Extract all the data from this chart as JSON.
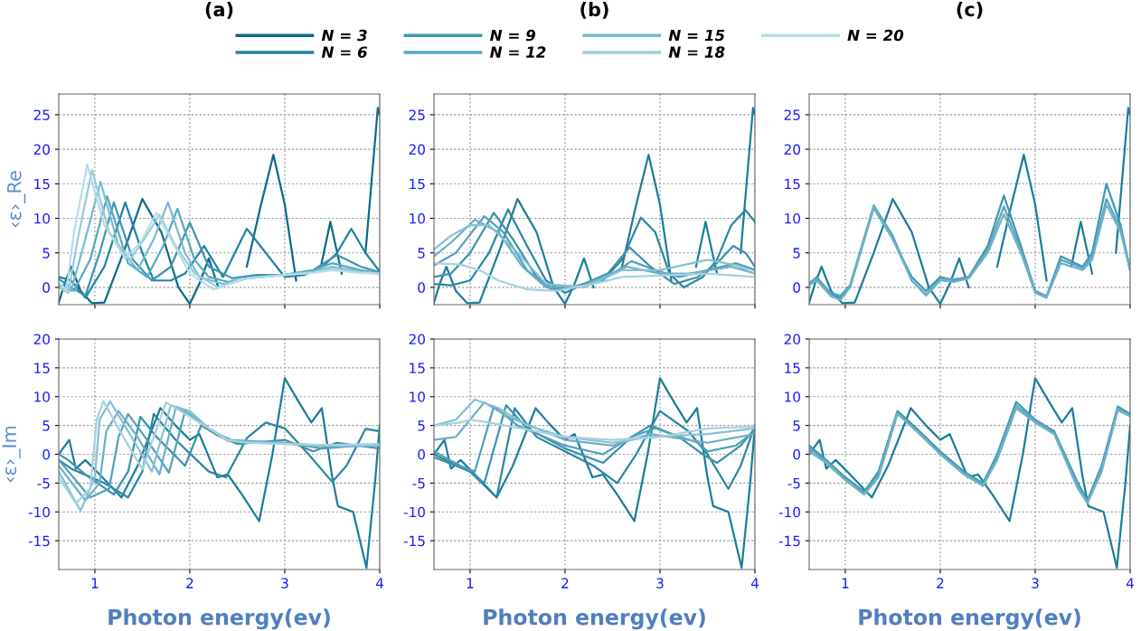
{
  "chart_data": [
    {
      "type": "line",
      "title": "(a)",
      "ylabel": "‹ε›_Re",
      "xlim": [
        0.62,
        4.0
      ],
      "ylim": [
        -2.5,
        28
      ],
      "xticks": [
        1,
        2,
        3,
        4
      ],
      "yticks": [
        0,
        5,
        10,
        15,
        20,
        25
      ],
      "tick_labels": "y",
      "grid": true,
      "legend": "top",
      "series": [
        {
          "name": "N = 3",
          "color": "#0b6a88",
          "x": [
            0.62,
            0.68,
            0.75,
            0.85,
            0.97,
            1.1,
            1.3,
            1.5,
            1.7,
            1.88,
            2.0,
            2.1,
            2.2,
            2.3,
            2.42,
            2.6,
            2.75,
            2.88,
            3.0,
            3.12,
            3.25,
            3.38,
            3.48,
            3.6,
            3.72,
            3.85,
            3.98,
            4.0
          ],
          "values": [
            -2.2,
            0.5,
            3.0,
            -0.5,
            -2.3,
            -2.2,
            5,
            12.8,
            8,
            0,
            -2.4,
            0.5,
            4.2,
            0,
            null,
            3,
            12,
            19.2,
            12,
            1,
            null,
            3,
            9.5,
            2,
            null,
            5,
            26,
            25
          ]
        },
        {
          "name": "N = 6",
          "color": "#1f84a3",
          "x": [
            0.62,
            0.75,
            0.9,
            1.1,
            1.32,
            1.5,
            1.62,
            1.8,
            1.95,
            2.15,
            2.35,
            2.6,
            2.8,
            3.0,
            3.2,
            3.4,
            3.55,
            3.7,
            3.85,
            4.0
          ],
          "values": [
            1.5,
            1,
            -1.5,
            3,
            12.3,
            5,
            1,
            1,
            2,
            6,
            1.5,
            8.5,
            5,
            1.5,
            1.8,
            3,
            5,
            8.5,
            5,
            2.3
          ]
        },
        {
          "name": "N = 9",
          "color": "#3a97b4",
          "x": [
            0.62,
            0.75,
            0.9,
            1.05,
            1.2,
            1.4,
            1.6,
            1.8,
            2.0,
            2.2,
            2.45,
            2.7,
            3.0,
            3.3,
            3.55,
            3.8,
            4.0
          ],
          "values": [
            1.2,
            0,
            -1.2,
            5,
            12.3,
            4,
            1,
            3,
            9.4,
            3,
            1.3,
            1.8,
            1.8,
            2.5,
            4.7,
            3,
            2.2
          ]
        },
        {
          "name": "N = 12",
          "color": "#58a9c2",
          "x": [
            0.62,
            0.78,
            0.95,
            1.13,
            1.35,
            1.55,
            1.72,
            1.87,
            2.05,
            2.2,
            2.4,
            2.7,
            3.0,
            3.3,
            3.5,
            3.8,
            4.0
          ],
          "values": [
            0.5,
            -0.5,
            4,
            13.2,
            3.5,
            1.5,
            6,
            11.4,
            4,
            1.5,
            0.8,
            1.5,
            1.8,
            2.5,
            3.5,
            2.5,
            2.1
          ]
        },
        {
          "name": "N = 15",
          "color": "#78bad0",
          "x": [
            0.62,
            0.75,
            0.88,
            1.06,
            1.25,
            1.45,
            1.62,
            1.77,
            1.95,
            2.1,
            2.35,
            2.6,
            3.0,
            3.3,
            3.5,
            3.8,
            4.0
          ],
          "values": [
            0.3,
            -0.5,
            6,
            15.3,
            6,
            2.5,
            7,
            12.3,
            5,
            1.5,
            0.5,
            1.3,
            1.8,
            2.3,
            3,
            2.3,
            2
          ]
        },
        {
          "name": "N = 18",
          "color": "#98cbdc",
          "x": [
            0.62,
            0.72,
            0.82,
            0.97,
            1.15,
            1.37,
            1.52,
            1.68,
            1.85,
            2.05,
            2.3,
            2.6,
            3.0,
            3.3,
            3.5,
            3.8,
            4.0
          ],
          "values": [
            0,
            -0.8,
            7,
            17,
            8,
            4,
            7,
            10.5,
            6,
            2,
            0,
            1.3,
            1.8,
            2.2,
            2.8,
            2.2,
            2
          ]
        },
        {
          "name": "N = 20",
          "color": "#b8dce8",
          "x": [
            0.62,
            0.7,
            0.78,
            0.92,
            1.1,
            1.32,
            1.48,
            1.65,
            1.8,
            2.0,
            2.25,
            2.55,
            3.0,
            3.3,
            3.5,
            3.8,
            4.0
          ],
          "values": [
            0.8,
            -0.5,
            8,
            17.8,
            9,
            4.2,
            6.5,
            10.8,
            7,
            2,
            -0.3,
            1.2,
            1.8,
            2.1,
            2.5,
            2.1,
            2
          ]
        }
      ]
    },
    {
      "type": "line",
      "title": "(b)",
      "xlim": [
        0.62,
        4.0
      ],
      "ylim": [
        -2.5,
        28
      ],
      "xticks": [
        1,
        2,
        3,
        4
      ],
      "yticks": [
        0,
        5,
        10,
        15,
        20,
        25
      ],
      "tick_labels": "y",
      "grid": true,
      "series": [
        {
          "color": "#1b7d99",
          "x": [
            0.62,
            0.68,
            0.75,
            0.85,
            0.97,
            1.1,
            1.3,
            1.5,
            1.7,
            1.88,
            2.0,
            2.1,
            2.2,
            2.3,
            2.42,
            2.6,
            2.75,
            2.88,
            3.0,
            3.12,
            3.25,
            3.38,
            3.48,
            3.6,
            3.72,
            3.85,
            3.98,
            4.0
          ],
          "values": [
            -2.2,
            0.5,
            3.0,
            -0.5,
            -2.3,
            -2.2,
            5,
            12.8,
            8,
            0,
            -2.4,
            0.5,
            4.2,
            0,
            null,
            3,
            12,
            19.2,
            12,
            1,
            null,
            3,
            9.5,
            2,
            null,
            5,
            26,
            25
          ]
        },
        {
          "color": "#2a87a3",
          "x": [
            0.62,
            0.8,
            1.0,
            1.2,
            1.4,
            1.6,
            1.8,
            2.0,
            2.2,
            2.4,
            2.6,
            2.8,
            2.95,
            3.1,
            3.25,
            3.45,
            3.6,
            3.75,
            3.9,
            4.0
          ],
          "values": [
            0.5,
            0.3,
            1,
            5,
            11.3,
            6,
            1,
            -0.8,
            0.5,
            1,
            4,
            10.1,
            8,
            2,
            0,
            1.5,
            4,
            9,
            11.2,
            9.5
          ]
        },
        {
          "color": "#3b92ad",
          "x": [
            0.62,
            0.8,
            1.0,
            1.25,
            1.45,
            1.7,
            1.9,
            2.2,
            2.45,
            2.68,
            2.9,
            3.15,
            3.4,
            3.6,
            3.77,
            3.9,
            4.0
          ],
          "values": [
            1.5,
            2,
            5,
            10.8,
            7,
            1.5,
            -0.5,
            0.5,
            2,
            5.8,
            3,
            0.5,
            1.5,
            3.5,
            6,
            5,
            3
          ]
        },
        {
          "color": "#52a0b9",
          "x": [
            0.62,
            0.85,
            1.15,
            1.35,
            1.6,
            1.85,
            2.2,
            2.45,
            2.7,
            2.95,
            3.2,
            3.5,
            3.8,
            4.0
          ],
          "values": [
            3.2,
            5,
            10.3,
            8,
            2.5,
            -0.3,
            0.3,
            1.5,
            3.8,
            2.5,
            1.5,
            2.5,
            3.5,
            2.5
          ]
        },
        {
          "color": "#6aafc5",
          "x": [
            0.62,
            0.8,
            1.05,
            1.3,
            1.55,
            1.8,
            2.2,
            2.4,
            2.65,
            3.0,
            3.3,
            3.75,
            4.0
          ],
          "values": [
            4.5,
            6.5,
            9.8,
            8,
            3,
            0,
            0.3,
            1.5,
            3,
            2,
            2,
            3,
            2
          ]
        },
        {
          "color": "#86c0d3",
          "x": [
            0.62,
            0.8,
            1.0,
            1.2,
            1.5,
            1.8,
            2.2,
            2.6,
            3.0,
            3.5,
            3.8,
            4.0
          ],
          "values": [
            5.5,
            7.5,
            9,
            9,
            5,
            0.5,
            0,
            2.5,
            2.5,
            4,
            3.2,
            2
          ]
        },
        {
          "color": "#a6d2e0",
          "x": [
            0.62,
            0.9,
            1.1,
            1.3,
            1.6,
            1.9,
            2.3,
            2.6,
            3.0,
            3.5,
            4.0
          ],
          "values": [
            3.5,
            3.3,
            2.5,
            1,
            -0.3,
            -0.5,
            0.5,
            1.5,
            1.7,
            2,
            1.5
          ]
        }
      ]
    },
    {
      "type": "line",
      "title": "(c)",
      "xlim": [
        0.62,
        4.0
      ],
      "ylim": [
        -2.5,
        28
      ],
      "xticks": [
        1,
        2,
        3,
        4
      ],
      "yticks": [
        0,
        5,
        10,
        15,
        20,
        25
      ],
      "tick_labels": "y",
      "grid": true,
      "series": [
        {
          "color": "#1b7d99",
          "x": [
            0.62,
            0.68,
            0.75,
            0.85,
            0.97,
            1.1,
            1.3,
            1.5,
            1.7,
            1.88,
            2.0,
            2.1,
            2.2,
            2.3,
            2.42,
            2.6,
            2.75,
            2.88,
            3.0,
            3.12,
            3.25,
            3.38,
            3.48,
            3.6,
            3.72,
            3.85,
            3.98,
            4.0
          ],
          "values": [
            -2.2,
            0.5,
            3.0,
            -0.5,
            -2.3,
            -2.2,
            5,
            12.8,
            8,
            0,
            -2.4,
            0.5,
            4.2,
            0,
            null,
            3,
            12,
            19.2,
            12,
            1,
            null,
            3,
            9.5,
            2,
            null,
            5,
            26,
            25
          ]
        },
        {
          "color": "#3f97b1",
          "x": [
            0.62,
            0.7,
            0.85,
            0.95,
            1.05,
            1.3,
            1.5,
            1.7,
            1.85,
            2.0,
            2.15,
            2.3,
            2.5,
            2.67,
            2.85,
            3.0,
            3.12,
            3.27,
            3.5,
            3.6,
            3.75,
            3.9,
            4.0
          ],
          "values": [
            0.5,
            1.5,
            -1,
            -1.5,
            0,
            11.5,
            7,
            1.5,
            -0.5,
            1.5,
            1,
            1.5,
            6,
            13.3,
            6,
            -0.5,
            -1.3,
            4.5,
            3,
            5,
            15,
            9,
            2.5
          ]
        },
        {
          "color": "#5aa6bf",
          "x": [
            0.62,
            0.7,
            0.85,
            0.95,
            1.05,
            1.3,
            1.5,
            1.7,
            1.85,
            2.0,
            2.15,
            2.3,
            2.5,
            2.67,
            2.85,
            3.0,
            3.12,
            3.27,
            3.5,
            3.6,
            3.75,
            3.9,
            4.0
          ],
          "values": [
            0.7,
            1.3,
            -0.8,
            -1.2,
            0.3,
            11.9,
            7.5,
            1,
            -1,
            1.2,
            1.2,
            1.5,
            5.5,
            11.7,
            5.5,
            -0.5,
            -1.3,
            4,
            2.8,
            4.5,
            12.8,
            8.5,
            2.5
          ]
        },
        {
          "color": "#6fb2c8",
          "x": [
            0.62,
            0.7,
            0.85,
            0.95,
            1.05,
            1.3,
            1.5,
            1.7,
            1.85,
            2.0,
            2.15,
            2.3,
            2.5,
            2.67,
            2.85,
            3.0,
            3.12,
            3.27,
            3.5,
            3.6,
            3.75,
            3.9,
            4.0
          ],
          "values": [
            0.3,
            1.0,
            -1.3,
            -1.8,
            0,
            11.6,
            7,
            1,
            -1.2,
            1,
            0.8,
            1.3,
            5,
            10.6,
            5,
            -0.8,
            -1.5,
            3.5,
            2.5,
            4,
            12,
            8,
            2.5
          ]
        }
      ]
    },
    {
      "type": "line",
      "ylabel": "‹ε›_Im",
      "xlabel": "Photon energy(ev)",
      "xlim": [
        0.62,
        4.0
      ],
      "ylim": [
        -20,
        20
      ],
      "xticks": [
        1,
        2,
        3,
        4
      ],
      "yticks": [
        -15,
        -10,
        -5,
        0,
        5,
        10,
        15,
        20
      ],
      "grid": true,
      "series": [
        {
          "color": "#1b7d99",
          "x": [
            0.62,
            0.73,
            0.8,
            0.9,
            1.05,
            1.28,
            1.45,
            1.69,
            1.85,
            2.0,
            2.1,
            2.29,
            2.4,
            2.55,
            2.73,
            2.87,
            3.0,
            3.15,
            3.28,
            3.39,
            3.5,
            3.56,
            3.72,
            3.86,
            3.95,
            4.0
          ],
          "values": [
            0,
            2.5,
            -2.5,
            -1,
            -3.5,
            -7.5,
            -2,
            8,
            5,
            2.5,
            3.5,
            -4,
            -3.5,
            -7,
            -11.6,
            0,
            13.2,
            9,
            5.5,
            8,
            -4,
            -9,
            -10,
            -19.7,
            -5,
            5
          ]
        },
        {
          "color": "#2a87a3",
          "x": [
            0.62,
            0.75,
            1.1,
            1.35,
            1.5,
            1.62,
            1.85,
            2.2,
            2.38,
            2.6,
            2.8,
            3.0,
            3.25,
            3.5,
            3.65,
            3.85,
            4.0
          ],
          "values": [
            -1,
            -2.5,
            -5,
            -7.5,
            -3,
            7,
            2.5,
            -3,
            -4,
            2.8,
            5.5,
            4.5,
            0,
            -4.8,
            -2,
            4.4,
            4
          ]
        },
        {
          "color": "#3b92ad",
          "x": [
            0.62,
            0.72,
            0.9,
            1.2,
            1.35,
            1.48,
            1.65,
            1.95,
            2.12,
            2.3,
            2.5,
            3.0,
            3.3,
            3.55,
            4.0
          ],
          "values": [
            0,
            -1,
            -3.5,
            -7,
            -3,
            6.5,
            3,
            -2,
            5,
            3.2,
            1.8,
            2.5,
            0.5,
            2,
            1
          ]
        },
        {
          "color": "#52a0b9",
          "x": [
            0.62,
            0.95,
            1.15,
            1.25,
            1.35,
            1.55,
            1.78,
            1.95,
            2.1,
            2.3,
            2.5,
            3.0,
            3.4,
            4.0
          ],
          "values": [
            -1,
            -7.5,
            -6,
            3,
            7,
            2.5,
            -3.2,
            7.5,
            5.5,
            3.5,
            2,
            2,
            1,
            1.8
          ]
        },
        {
          "color": "#6aafc5",
          "x": [
            0.62,
            0.9,
            1.05,
            1.12,
            1.25,
            1.45,
            1.68,
            1.85,
            2.0,
            2.2,
            2.4,
            3.0,
            3.5,
            4.0
          ],
          "values": [
            -2,
            -8,
            -5,
            4,
            7.5,
            3,
            -3.5,
            8,
            7,
            4.5,
            2.5,
            2,
            1.3,
            1.5
          ]
        },
        {
          "color": "#86c0d3",
          "x": [
            0.62,
            0.85,
            1.0,
            1.05,
            1.16,
            1.35,
            1.6,
            1.8,
            2.0,
            2.2,
            2.4,
            3.0,
            3.5,
            4.0
          ],
          "values": [
            -3,
            -9.8,
            -4,
            6,
            9.2,
            4,
            -3,
            8.5,
            7.5,
            4.5,
            2.3,
            1.8,
            1.5,
            1.5
          ]
        },
        {
          "color": "#a6d2e0",
          "x": [
            0.62,
            0.8,
            0.95,
            1.02,
            1.09,
            1.3,
            1.5,
            1.75,
            2.15,
            2.4,
            2.6,
            3.0,
            3.5,
            4.0
          ],
          "values": [
            -4,
            -8.5,
            -6,
            6,
            9.2,
            3,
            -2.6,
            9,
            5,
            2.5,
            2,
            1.8,
            1.6,
            1.8
          ]
        }
      ]
    },
    {
      "type": "line",
      "xlabel": "Photon energy(ev)",
      "xlim": [
        0.62,
        4.0
      ],
      "ylim": [
        -20,
        20
      ],
      "xticks": [
        1,
        2,
        3,
        4
      ],
      "yticks": [
        -15,
        -10,
        -5,
        0,
        5,
        10,
        15,
        20
      ],
      "grid": true,
      "series": [
        {
          "color": "#1b7d99",
          "x": [
            0.62,
            0.73,
            0.8,
            0.9,
            1.05,
            1.28,
            1.45,
            1.69,
            1.85,
            2.0,
            2.1,
            2.29,
            2.4,
            2.55,
            2.73,
            2.87,
            3.0,
            3.15,
            3.28,
            3.39,
            3.5,
            3.56,
            3.72,
            3.86,
            3.95,
            4.0
          ],
          "values": [
            0,
            2.5,
            -2.5,
            -1,
            -3.5,
            -7.5,
            -2,
            8,
            5,
            2.5,
            3.5,
            -4,
            -3.5,
            -7,
            -11.6,
            0,
            13.2,
            9,
            5.5,
            8,
            -4,
            -9,
            -10,
            -19.7,
            -5,
            5
          ]
        },
        {
          "color": "#2a87a3",
          "x": [
            0.62,
            1.0,
            1.28,
            1.47,
            1.7,
            2.0,
            2.3,
            2.55,
            2.75,
            3.0,
            3.3,
            3.5,
            3.72,
            3.85,
            4.0
          ],
          "values": [
            0,
            -3,
            -7.5,
            8,
            3,
            0.5,
            -2,
            -5,
            0,
            7.5,
            4,
            0,
            -6,
            -2,
            5
          ]
        },
        {
          "color": "#3b92ad",
          "x": [
            0.62,
            1.0,
            1.15,
            1.38,
            1.6,
            2.0,
            2.4,
            2.7,
            2.9,
            3.2,
            3.45,
            3.6,
            3.85,
            4.0
          ],
          "values": [
            -0.5,
            -3,
            -5,
            8.5,
            4.5,
            1,
            -1.5,
            3,
            5,
            3,
            0,
            -1.5,
            1.5,
            4.5
          ]
        },
        {
          "color": "#52a0b9",
          "x": [
            0.62,
            0.9,
            1.05,
            1.25,
            1.5,
            2.0,
            2.4,
            2.7,
            2.95,
            3.4,
            3.5,
            3.8,
            4.0
          ],
          "values": [
            0.5,
            -2,
            -3,
            8.3,
            5,
            1.5,
            0,
            3,
            4.5,
            2,
            0.5,
            1.5,
            4
          ]
        },
        {
          "color": "#6aafc5",
          "x": [
            0.62,
            0.85,
            1.15,
            1.4,
            2.0,
            2.5,
            2.9,
            3.5,
            4.0
          ],
          "values": [
            2.5,
            3,
            9,
            6.5,
            2.5,
            1.5,
            3.5,
            2,
            3.5
          ]
        },
        {
          "color": "#86c0d3",
          "x": [
            0.62,
            0.85,
            1.05,
            1.3,
            1.6,
            2.0,
            2.5,
            2.9,
            3.5,
            4.0
          ],
          "values": [
            5,
            6,
            9.5,
            8,
            5,
            3,
            2,
            3,
            3.5,
            4.5
          ]
        },
        {
          "color": "#a6d2e0",
          "x": [
            0.62,
            0.9,
            1.0,
            1.2,
            1.6,
            2.0,
            2.5,
            3.0,
            3.5,
            4.0
          ],
          "values": [
            5,
            5.5,
            6,
            5.5,
            4.3,
            3,
            2.5,
            3,
            4.5,
            4.8
          ]
        }
      ]
    },
    {
      "type": "line",
      "xlabel": "Photon energy(ev)",
      "xlim": [
        0.62,
        4.0
      ],
      "ylim": [
        -20,
        20
      ],
      "xticks": [
        1,
        2,
        3,
        4
      ],
      "yticks": [
        -15,
        -10,
        -5,
        0,
        5,
        10,
        15,
        20
      ],
      "grid": true,
      "series": [
        {
          "color": "#1b7d99",
          "x": [
            0.62,
            0.73,
            0.8,
            0.9,
            1.05,
            1.28,
            1.45,
            1.69,
            1.85,
            2.0,
            2.1,
            2.29,
            2.4,
            2.55,
            2.73,
            2.87,
            3.0,
            3.15,
            3.28,
            3.39,
            3.5,
            3.56,
            3.72,
            3.86,
            3.95,
            4.0
          ],
          "values": [
            0,
            2.5,
            -2.5,
            -1,
            -3.5,
            -7.5,
            -2,
            8,
            5,
            2.5,
            3.5,
            -4,
            -3.5,
            -7,
            -11.6,
            0,
            13.2,
            9,
            5.5,
            8,
            -4,
            -9,
            -10,
            -19.7,
            -5,
            5
          ]
        },
        {
          "color": "#3f97b1",
          "x": [
            0.62,
            0.8,
            1.0,
            1.2,
            1.35,
            1.55,
            1.75,
            2.0,
            2.25,
            2.45,
            2.6,
            2.8,
            3.0,
            3.2,
            3.45,
            3.55,
            3.7,
            3.87,
            4.0
          ],
          "values": [
            1.5,
            -1,
            -4,
            -6.5,
            -3,
            7.5,
            4.5,
            0.5,
            -3,
            -5,
            0,
            9.1,
            6,
            4,
            -5,
            -8,
            -2,
            8.3,
            7
          ]
        },
        {
          "color": "#5aa6bf",
          "x": [
            0.62,
            0.8,
            1.0,
            1.2,
            1.35,
            1.55,
            1.75,
            2.0,
            2.25,
            2.45,
            2.6,
            2.8,
            3.0,
            3.2,
            3.45,
            3.55,
            3.7,
            3.87,
            4.0
          ],
          "values": [
            1,
            -1.2,
            -4.3,
            -6.8,
            -3.5,
            7.2,
            4.2,
            0.2,
            -3.3,
            -5.3,
            -0.5,
            8.5,
            5.8,
            3.8,
            -5.5,
            -8.3,
            -2.5,
            7.9,
            6.8
          ]
        },
        {
          "color": "#6fb2c8",
          "x": [
            0.62,
            0.8,
            1.0,
            1.2,
            1.35,
            1.55,
            1.75,
            2.0,
            2.25,
            2.45,
            2.6,
            2.8,
            3.0,
            3.2,
            3.45,
            3.55,
            3.7,
            3.87,
            4.0
          ],
          "values": [
            0.5,
            -1.5,
            -4.5,
            -7,
            -4,
            7,
            4,
            0,
            -3.5,
            -5.5,
            -1,
            8,
            5.5,
            3.5,
            -6,
            -8.5,
            -3,
            7.6,
            6.6
          ]
        }
      ]
    }
  ]
}
